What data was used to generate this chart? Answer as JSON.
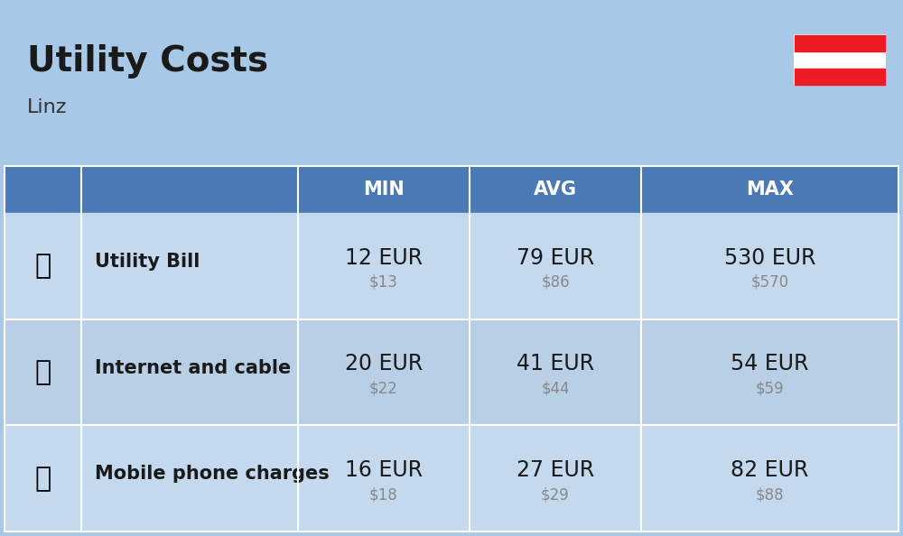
{
  "title": "Utility Costs",
  "subtitle": "Linz",
  "background_color": "#a8c8e8",
  "header_color": "#4a7ab5",
  "header_text_color": "#ffffff",
  "row_color_1": "#c5d9ee",
  "row_color_2": "#b8cfe6",
  "col_headers": [
    "MIN",
    "AVG",
    "MAX"
  ],
  "rows": [
    {
      "label": "Utility Bill",
      "min_eur": "12 EUR",
      "min_usd": "$13",
      "avg_eur": "79 EUR",
      "avg_usd": "$86",
      "max_eur": "530 EUR",
      "max_usd": "$570"
    },
    {
      "label": "Internet and cable",
      "min_eur": "20 EUR",
      "min_usd": "$22",
      "avg_eur": "41 EUR",
      "avg_usd": "$44",
      "max_eur": "54 EUR",
      "max_usd": "$59"
    },
    {
      "label": "Mobile phone charges",
      "min_eur": "16 EUR",
      "min_usd": "$18",
      "avg_eur": "27 EUR",
      "avg_usd": "$29",
      "max_eur": "82 EUR",
      "max_usd": "$88"
    }
  ],
  "flag_colors": [
    "#ffffff",
    "#ed1c24"
  ],
  "title_fontsize": 28,
  "subtitle_fontsize": 16,
  "header_fontsize": 15,
  "label_fontsize": 15,
  "value_fontsize": 17,
  "usd_fontsize": 12
}
